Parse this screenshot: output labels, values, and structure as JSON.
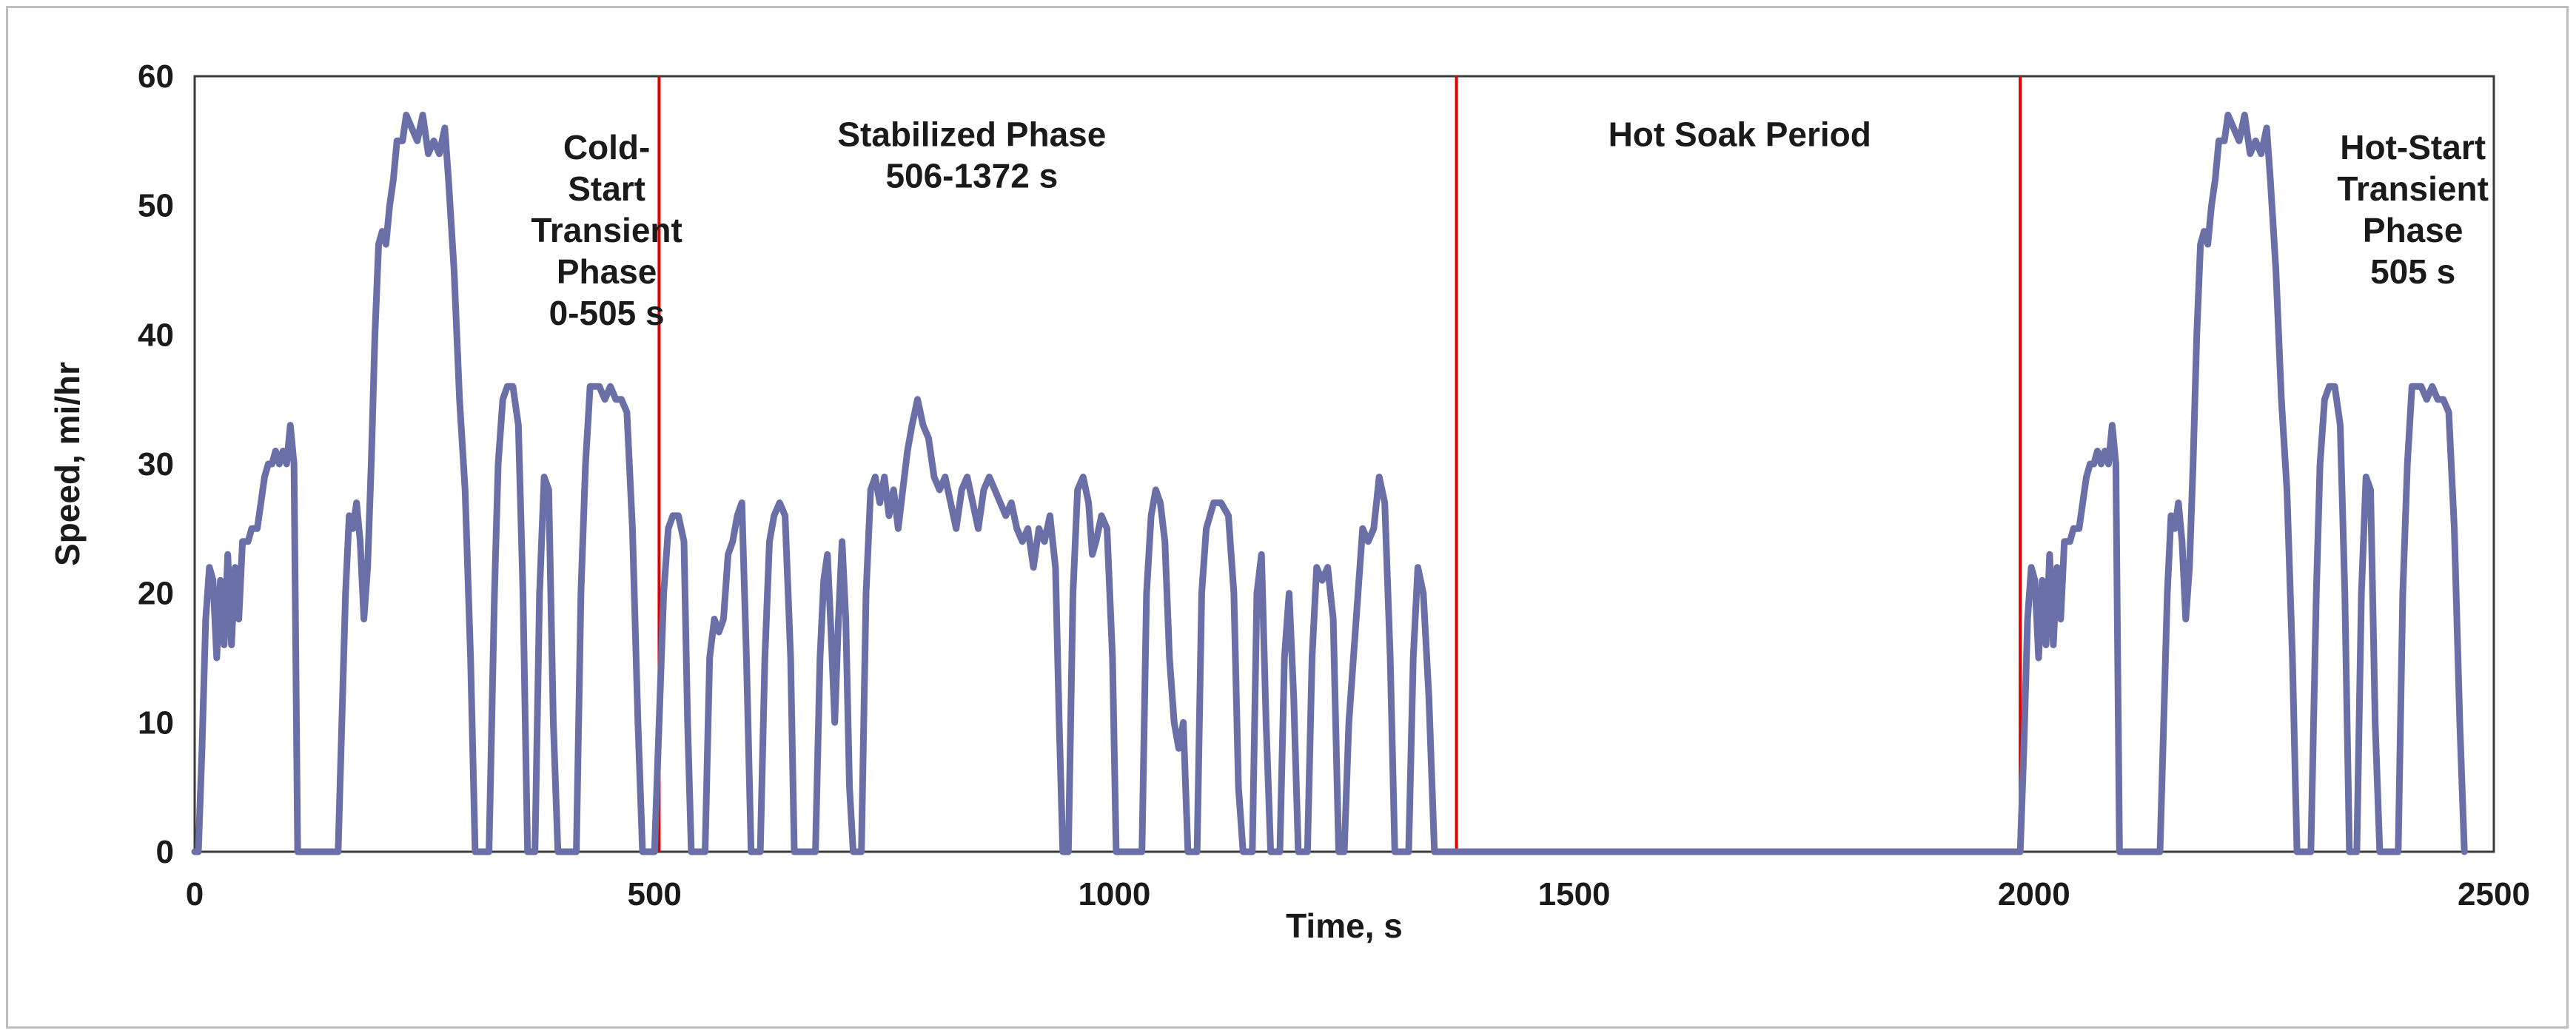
{
  "chart_data": {
    "type": "line",
    "title": "",
    "xlabel": "Time, s",
    "ylabel": "Speed, mi/hr",
    "xlim": [
      0,
      2500
    ],
    "ylim": [
      0,
      60
    ],
    "xticks": [
      0,
      500,
      1000,
      1500,
      2000,
      2500
    ],
    "yticks": [
      0,
      10,
      20,
      30,
      40,
      50,
      60
    ],
    "grid": false,
    "legend": "none",
    "series_color": "#6b6fa8",
    "divider_color": "#e00000",
    "phase_dividers": [
      505,
      1372,
      1985
    ],
    "phase_labels": [
      {
        "lines": [
          "Cold-",
          "Start",
          "Transient",
          "Phase",
          "0-505 s"
        ],
        "x": 448,
        "y_top": 54.5
      },
      {
        "lines": [
          "Stabilized Phase",
          "506-1372 s"
        ],
        "x": 845,
        "y_top": 55.5
      },
      {
        "lines": [
          "Hot Soak Period"
        ],
        "x": 1680,
        "y_top": 55.5
      },
      {
        "lines": [
          "Hot-Start",
          "Transient",
          "Phase",
          "505 s"
        ],
        "x": 2412,
        "y_top": 54.5
      }
    ],
    "series": [
      {
        "values": [
          [
            0,
            0
          ],
          [
            4,
            0
          ],
          [
            8,
            8
          ],
          [
            12,
            18
          ],
          [
            16,
            22
          ],
          [
            20,
            21
          ],
          [
            24,
            15
          ],
          [
            28,
            21
          ],
          [
            32,
            16
          ],
          [
            36,
            23
          ],
          [
            40,
            16
          ],
          [
            44,
            22
          ],
          [
            48,
            18
          ],
          [
            52,
            24
          ],
          [
            58,
            24
          ],
          [
            62,
            25
          ],
          [
            68,
            25
          ],
          [
            72,
            27
          ],
          [
            76,
            29
          ],
          [
            80,
            30
          ],
          [
            84,
            30
          ],
          [
            88,
            31
          ],
          [
            92,
            30
          ],
          [
            96,
            31
          ],
          [
            100,
            30
          ],
          [
            104,
            33
          ],
          [
            108,
            30
          ],
          [
            112,
            0
          ],
          [
            156,
            0
          ],
          [
            160,
            10
          ],
          [
            164,
            20
          ],
          [
            168,
            26
          ],
          [
            172,
            25
          ],
          [
            176,
            27
          ],
          [
            180,
            24
          ],
          [
            184,
            18
          ],
          [
            188,
            22
          ],
          [
            192,
            30
          ],
          [
            196,
            40
          ],
          [
            200,
            47
          ],
          [
            204,
            48
          ],
          [
            208,
            47
          ],
          [
            212,
            50
          ],
          [
            216,
            52
          ],
          [
            220,
            55
          ],
          [
            226,
            55
          ],
          [
            230,
            57
          ],
          [
            236,
            56
          ],
          [
            242,
            55
          ],
          [
            248,
            57
          ],
          [
            254,
            54
          ],
          [
            260,
            55
          ],
          [
            266,
            54
          ],
          [
            272,
            56
          ],
          [
            276,
            52
          ],
          [
            282,
            45
          ],
          [
            288,
            35
          ],
          [
            294,
            28
          ],
          [
            300,
            15
          ],
          [
            305,
            0
          ],
          [
            320,
            0
          ],
          [
            326,
            20
          ],
          [
            330,
            30
          ],
          [
            335,
            35
          ],
          [
            340,
            36
          ],
          [
            346,
            36
          ],
          [
            352,
            33
          ],
          [
            357,
            20
          ],
          [
            362,
            0
          ],
          [
            370,
            0
          ],
          [
            375,
            20
          ],
          [
            380,
            29
          ],
          [
            385,
            28
          ],
          [
            390,
            10
          ],
          [
            395,
            0
          ],
          [
            415,
            0
          ],
          [
            420,
            20
          ],
          [
            425,
            30
          ],
          [
            430,
            36
          ],
          [
            440,
            36
          ],
          [
            446,
            35
          ],
          [
            452,
            36
          ],
          [
            458,
            35
          ],
          [
            464,
            35
          ],
          [
            470,
            34
          ],
          [
            476,
            25
          ],
          [
            482,
            10
          ],
          [
            487,
            0
          ],
          [
            500,
            0
          ],
          [
            510,
            20
          ],
          [
            515,
            25
          ],
          [
            520,
            26
          ],
          [
            526,
            26
          ],
          [
            532,
            24
          ],
          [
            536,
            10
          ],
          [
            540,
            0
          ],
          [
            555,
            0
          ],
          [
            560,
            15
          ],
          [
            565,
            18
          ],
          [
            570,
            17
          ],
          [
            575,
            18
          ],
          [
            580,
            23
          ],
          [
            585,
            24
          ],
          [
            590,
            26
          ],
          [
            595,
            27
          ],
          [
            600,
            15
          ],
          [
            605,
            0
          ],
          [
            615,
            0
          ],
          [
            620,
            15
          ],
          [
            625,
            24
          ],
          [
            630,
            26
          ],
          [
            636,
            27
          ],
          [
            642,
            26
          ],
          [
            648,
            15
          ],
          [
            652,
            0
          ],
          [
            675,
            0
          ],
          [
            680,
            15
          ],
          [
            684,
            21
          ],
          [
            688,
            23
          ],
          [
            692,
            17
          ],
          [
            696,
            10
          ],
          [
            700,
            18
          ],
          [
            704,
            24
          ],
          [
            708,
            18
          ],
          [
            712,
            5
          ],
          [
            716,
            0
          ],
          [
            725,
            0
          ],
          [
            730,
            20
          ],
          [
            735,
            28
          ],
          [
            740,
            29
          ],
          [
            745,
            27
          ],
          [
            750,
            29
          ],
          [
            755,
            26
          ],
          [
            760,
            28
          ],
          [
            765,
            25
          ],
          [
            770,
            28
          ],
          [
            775,
            31
          ],
          [
            780,
            33
          ],
          [
            786,
            35
          ],
          [
            792,
            33
          ],
          [
            798,
            32
          ],
          [
            804,
            29
          ],
          [
            810,
            28
          ],
          [
            816,
            29
          ],
          [
            822,
            27
          ],
          [
            828,
            25
          ],
          [
            834,
            28
          ],
          [
            840,
            29
          ],
          [
            846,
            27
          ],
          [
            852,
            25
          ],
          [
            858,
            28
          ],
          [
            864,
            29
          ],
          [
            870,
            28
          ],
          [
            876,
            27
          ],
          [
            882,
            26
          ],
          [
            888,
            27
          ],
          [
            894,
            25
          ],
          [
            900,
            24
          ],
          [
            906,
            25
          ],
          [
            912,
            22
          ],
          [
            918,
            25
          ],
          [
            924,
            24
          ],
          [
            930,
            26
          ],
          [
            936,
            22
          ],
          [
            940,
            10
          ],
          [
            944,
            0
          ],
          [
            950,
            0
          ],
          [
            955,
            20
          ],
          [
            960,
            28
          ],
          [
            966,
            29
          ],
          [
            972,
            27
          ],
          [
            976,
            23
          ],
          [
            980,
            24
          ],
          [
            986,
            26
          ],
          [
            992,
            25
          ],
          [
            998,
            15
          ],
          [
            1002,
            0
          ],
          [
            1030,
            0
          ],
          [
            1035,
            20
          ],
          [
            1040,
            26
          ],
          [
            1045,
            28
          ],
          [
            1050,
            27
          ],
          [
            1055,
            24
          ],
          [
            1060,
            15
          ],
          [
            1065,
            10
          ],
          [
            1070,
            8
          ],
          [
            1075,
            10
          ],
          [
            1080,
            0
          ],
          [
            1090,
            0
          ],
          [
            1095,
            20
          ],
          [
            1100,
            25
          ],
          [
            1108,
            27
          ],
          [
            1116,
            27
          ],
          [
            1124,
            26
          ],
          [
            1130,
            20
          ],
          [
            1135,
            5
          ],
          [
            1140,
            0
          ],
          [
            1150,
            0
          ],
          [
            1155,
            20
          ],
          [
            1160,
            23
          ],
          [
            1165,
            10
          ],
          [
            1170,
            0
          ],
          [
            1180,
            0
          ],
          [
            1185,
            15
          ],
          [
            1190,
            20
          ],
          [
            1195,
            12
          ],
          [
            1200,
            0
          ],
          [
            1210,
            0
          ],
          [
            1215,
            15
          ],
          [
            1220,
            22
          ],
          [
            1226,
            21
          ],
          [
            1232,
            22
          ],
          [
            1238,
            18
          ],
          [
            1244,
            0
          ],
          [
            1250,
            0
          ],
          [
            1255,
            10
          ],
          [
            1260,
            15
          ],
          [
            1265,
            20
          ],
          [
            1270,
            25
          ],
          [
            1276,
            24
          ],
          [
            1282,
            25
          ],
          [
            1288,
            29
          ],
          [
            1294,
            27
          ],
          [
            1300,
            15
          ],
          [
            1305,
            0
          ],
          [
            1320,
            0
          ],
          [
            1325,
            15
          ],
          [
            1330,
            22
          ],
          [
            1336,
            20
          ],
          [
            1342,
            12
          ],
          [
            1348,
            0
          ],
          [
            1372,
            0
          ],
          [
            1985,
            0
          ],
          [
            1989,
            8
          ],
          [
            1993,
            18
          ],
          [
            1997,
            22
          ],
          [
            2001,
            21
          ],
          [
            2005,
            15
          ],
          [
            2009,
            21
          ],
          [
            2013,
            16
          ],
          [
            2017,
            23
          ],
          [
            2021,
            16
          ],
          [
            2025,
            22
          ],
          [
            2029,
            18
          ],
          [
            2033,
            24
          ],
          [
            2039,
            24
          ],
          [
            2043,
            25
          ],
          [
            2049,
            25
          ],
          [
            2053,
            27
          ],
          [
            2057,
            29
          ],
          [
            2061,
            30
          ],
          [
            2065,
            30
          ],
          [
            2069,
            31
          ],
          [
            2073,
            30
          ],
          [
            2077,
            31
          ],
          [
            2081,
            30
          ],
          [
            2085,
            33
          ],
          [
            2089,
            30
          ],
          [
            2093,
            0
          ],
          [
            2137,
            0
          ],
          [
            2141,
            10
          ],
          [
            2145,
            20
          ],
          [
            2149,
            26
          ],
          [
            2153,
            25
          ],
          [
            2157,
            27
          ],
          [
            2161,
            24
          ],
          [
            2165,
            18
          ],
          [
            2169,
            22
          ],
          [
            2173,
            30
          ],
          [
            2177,
            40
          ],
          [
            2181,
            47
          ],
          [
            2185,
            48
          ],
          [
            2189,
            47
          ],
          [
            2193,
            50
          ],
          [
            2197,
            52
          ],
          [
            2201,
            55
          ],
          [
            2207,
            55
          ],
          [
            2211,
            57
          ],
          [
            2217,
            56
          ],
          [
            2223,
            55
          ],
          [
            2229,
            57
          ],
          [
            2235,
            54
          ],
          [
            2241,
            55
          ],
          [
            2247,
            54
          ],
          [
            2253,
            56
          ],
          [
            2257,
            52
          ],
          [
            2263,
            45
          ],
          [
            2269,
            35
          ],
          [
            2275,
            28
          ],
          [
            2281,
            15
          ],
          [
            2286,
            0
          ],
          [
            2301,
            0
          ],
          [
            2307,
            20
          ],
          [
            2311,
            30
          ],
          [
            2316,
            35
          ],
          [
            2321,
            36
          ],
          [
            2327,
            36
          ],
          [
            2333,
            33
          ],
          [
            2338,
            20
          ],
          [
            2343,
            0
          ],
          [
            2351,
            0
          ],
          [
            2356,
            20
          ],
          [
            2361,
            29
          ],
          [
            2366,
            28
          ],
          [
            2371,
            10
          ],
          [
            2376,
            0
          ],
          [
            2396,
            0
          ],
          [
            2401,
            20
          ],
          [
            2406,
            30
          ],
          [
            2411,
            36
          ],
          [
            2421,
            36
          ],
          [
            2427,
            35
          ],
          [
            2433,
            36
          ],
          [
            2439,
            35
          ],
          [
            2445,
            35
          ],
          [
            2451,
            34
          ],
          [
            2457,
            25
          ],
          [
            2463,
            10
          ],
          [
            2468,
            0
          ]
        ]
      }
    ]
  }
}
